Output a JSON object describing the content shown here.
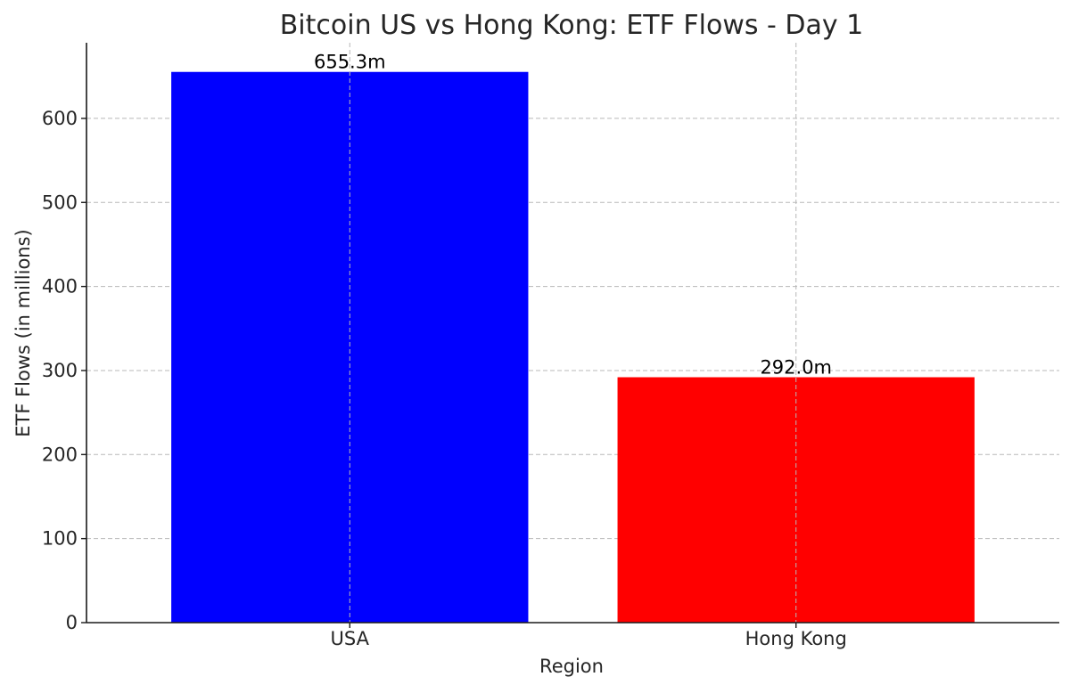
{
  "chart_data": {
    "type": "bar",
    "title": "Bitcoin US vs Hong Kong: ETF Flows - Day 1",
    "xlabel": "Region",
    "ylabel": "ETF Flows (in millions)",
    "categories": [
      "USA",
      "Hong Kong"
    ],
    "values": [
      655.3,
      292.0
    ],
    "data_labels": [
      "655.3m",
      "292.0m"
    ],
    "colors": [
      "#0000ff",
      "#ff0000"
    ],
    "ylim": [
      0,
      690
    ],
    "yticks": [
      0,
      100,
      200,
      300,
      400,
      500,
      600
    ],
    "grid": true,
    "legend": "none"
  }
}
